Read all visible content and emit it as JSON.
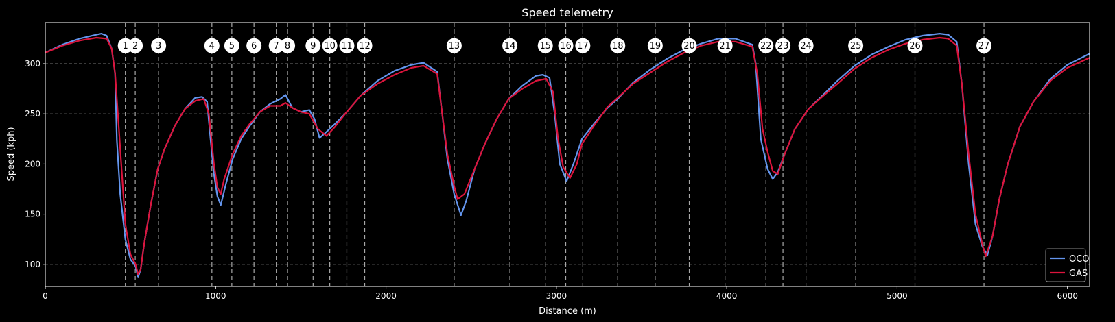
{
  "chart_data": {
    "type": "line",
    "title": "Speed telemetry",
    "xlabel": "Distance (m)",
    "ylabel": "Speed (kph)",
    "xlim": [
      0,
      6130
    ],
    "ylim": [
      78,
      341
    ],
    "xticks": [
      0,
      1000,
      2000,
      3000,
      4000,
      5000,
      6000
    ],
    "yticks": [
      100,
      150,
      200,
      250,
      300
    ],
    "grid": "horizontal dashed",
    "legend_position": "bottom-right",
    "series": [
      {
        "name": "OCO",
        "color": "#6495ED",
        "points": [
          [
            0,
            311
          ],
          [
            100,
            319
          ],
          [
            200,
            325
          ],
          [
            300,
            329
          ],
          [
            330,
            330
          ],
          [
            360,
            328
          ],
          [
            390,
            315
          ],
          [
            410,
            290
          ],
          [
            420,
            224
          ],
          [
            440,
            170
          ],
          [
            470,
            125
          ],
          [
            500,
            105
          ],
          [
            530,
            98
          ],
          [
            545,
            87
          ],
          [
            560,
            95
          ],
          [
            580,
            120
          ],
          [
            620,
            160
          ],
          [
            660,
            195
          ],
          [
            700,
            215
          ],
          [
            760,
            238
          ],
          [
            820,
            255
          ],
          [
            880,
            266
          ],
          [
            920,
            267
          ],
          [
            950,
            262
          ],
          [
            970,
            225
          ],
          [
            990,
            190
          ],
          [
            1010,
            168
          ],
          [
            1030,
            159
          ],
          [
            1060,
            180
          ],
          [
            1100,
            205
          ],
          [
            1150,
            225
          ],
          [
            1200,
            238
          ],
          [
            1260,
            252
          ],
          [
            1320,
            260
          ],
          [
            1380,
            265
          ],
          [
            1410,
            269
          ],
          [
            1450,
            256
          ],
          [
            1500,
            252
          ],
          [
            1550,
            254
          ],
          [
            1580,
            245
          ],
          [
            1610,
            226
          ],
          [
            1650,
            232
          ],
          [
            1700,
            240
          ],
          [
            1760,
            250
          ],
          [
            1850,
            268
          ],
          [
            1950,
            283
          ],
          [
            2050,
            293
          ],
          [
            2150,
            299
          ],
          [
            2220,
            301
          ],
          [
            2300,
            292
          ],
          [
            2330,
            250
          ],
          [
            2360,
            205
          ],
          [
            2400,
            170
          ],
          [
            2440,
            149
          ],
          [
            2470,
            163
          ],
          [
            2520,
            195
          ],
          [
            2580,
            220
          ],
          [
            2650,
            245
          ],
          [
            2720,
            265
          ],
          [
            2800,
            278
          ],
          [
            2880,
            288
          ],
          [
            2920,
            289
          ],
          [
            2960,
            286
          ],
          [
            2990,
            250
          ],
          [
            3020,
            200
          ],
          [
            3060,
            183
          ],
          [
            3100,
            200
          ],
          [
            3150,
            225
          ],
          [
            3220,
            240
          ],
          [
            3300,
            256
          ],
          [
            3360,
            265
          ],
          [
            3450,
            281
          ],
          [
            3550,
            294
          ],
          [
            3650,
            305
          ],
          [
            3750,
            314
          ],
          [
            3850,
            320
          ],
          [
            3950,
            325
          ],
          [
            4050,
            325
          ],
          [
            4150,
            319
          ],
          [
            4170,
            300
          ],
          [
            4200,
            225
          ],
          [
            4240,
            195
          ],
          [
            4270,
            185
          ],
          [
            4300,
            192
          ],
          [
            4340,
            210
          ],
          [
            4400,
            235
          ],
          [
            4480,
            255
          ],
          [
            4560,
            268
          ],
          [
            4650,
            283
          ],
          [
            4750,
            298
          ],
          [
            4850,
            309
          ],
          [
            4950,
            317
          ],
          [
            5050,
            324
          ],
          [
            5150,
            328
          ],
          [
            5250,
            330
          ],
          [
            5300,
            329
          ],
          [
            5350,
            322
          ],
          [
            5380,
            280
          ],
          [
            5420,
            200
          ],
          [
            5460,
            140
          ],
          [
            5500,
            118
          ],
          [
            5530,
            109
          ],
          [
            5560,
            128
          ],
          [
            5600,
            165
          ],
          [
            5650,
            200
          ],
          [
            5720,
            237
          ],
          [
            5800,
            262
          ],
          [
            5900,
            285
          ],
          [
            6000,
            299
          ],
          [
            6130,
            310
          ]
        ]
      },
      {
        "name": "GAS",
        "color": "#DC143C",
        "points": [
          [
            0,
            311
          ],
          [
            100,
            318
          ],
          [
            200,
            323
          ],
          [
            300,
            326
          ],
          [
            360,
            325
          ],
          [
            390,
            315
          ],
          [
            410,
            290
          ],
          [
            430,
            240
          ],
          [
            450,
            190
          ],
          [
            470,
            140
          ],
          [
            500,
            110
          ],
          [
            530,
            100
          ],
          [
            545,
            90
          ],
          [
            560,
            95
          ],
          [
            580,
            120
          ],
          [
            620,
            160
          ],
          [
            660,
            195
          ],
          [
            700,
            215
          ],
          [
            760,
            238
          ],
          [
            820,
            255
          ],
          [
            880,
            263
          ],
          [
            930,
            265
          ],
          [
            960,
            250
          ],
          [
            990,
            200
          ],
          [
            1010,
            177
          ],
          [
            1030,
            170
          ],
          [
            1050,
            185
          ],
          [
            1100,
            210
          ],
          [
            1150,
            228
          ],
          [
            1200,
            240
          ],
          [
            1260,
            252
          ],
          [
            1320,
            258
          ],
          [
            1380,
            258
          ],
          [
            1410,
            261
          ],
          [
            1450,
            256
          ],
          [
            1500,
            252
          ],
          [
            1550,
            250
          ],
          [
            1600,
            235
          ],
          [
            1650,
            228
          ],
          [
            1700,
            237
          ],
          [
            1760,
            250
          ],
          [
            1850,
            268
          ],
          [
            1950,
            280
          ],
          [
            2050,
            289
          ],
          [
            2150,
            296
          ],
          [
            2220,
            298
          ],
          [
            2300,
            290
          ],
          [
            2330,
            250
          ],
          [
            2360,
            210
          ],
          [
            2400,
            178
          ],
          [
            2420,
            165
          ],
          [
            2460,
            170
          ],
          [
            2520,
            195
          ],
          [
            2580,
            220
          ],
          [
            2650,
            245
          ],
          [
            2720,
            265
          ],
          [
            2800,
            275
          ],
          [
            2880,
            283
          ],
          [
            2940,
            285
          ],
          [
            2980,
            272
          ],
          [
            3010,
            225
          ],
          [
            3040,
            197
          ],
          [
            3080,
            186
          ],
          [
            3120,
            200
          ],
          [
            3150,
            220
          ],
          [
            3220,
            238
          ],
          [
            3300,
            257
          ],
          [
            3360,
            266
          ],
          [
            3450,
            280
          ],
          [
            3550,
            291
          ],
          [
            3650,
            302
          ],
          [
            3750,
            311
          ],
          [
            3850,
            318
          ],
          [
            3950,
            322
          ],
          [
            4050,
            322
          ],
          [
            4150,
            317
          ],
          [
            4180,
            290
          ],
          [
            4210,
            235
          ],
          [
            4240,
            212
          ],
          [
            4270,
            193
          ],
          [
            4300,
            190
          ],
          [
            4340,
            210
          ],
          [
            4400,
            235
          ],
          [
            4480,
            255
          ],
          [
            4560,
            267
          ],
          [
            4650,
            280
          ],
          [
            4750,
            295
          ],
          [
            4850,
            306
          ],
          [
            4950,
            314
          ],
          [
            5050,
            320
          ],
          [
            5150,
            324
          ],
          [
            5250,
            326
          ],
          [
            5300,
            325
          ],
          [
            5350,
            318
          ],
          [
            5380,
            280
          ],
          [
            5420,
            210
          ],
          [
            5460,
            150
          ],
          [
            5500,
            120
          ],
          [
            5520,
            108
          ],
          [
            5560,
            128
          ],
          [
            5600,
            165
          ],
          [
            5650,
            200
          ],
          [
            5720,
            237
          ],
          [
            5800,
            262
          ],
          [
            5900,
            283
          ],
          [
            6000,
            296
          ],
          [
            6130,
            306
          ]
        ]
      }
    ],
    "corners": [
      {
        "label": "1",
        "x": 470
      },
      {
        "label": "2",
        "x": 528
      },
      {
        "label": "3",
        "x": 665
      },
      {
        "label": "4",
        "x": 978
      },
      {
        "label": "5",
        "x": 1095
      },
      {
        "label": "6",
        "x": 1225
      },
      {
        "label": "7",
        "x": 1356
      },
      {
        "label": "8",
        "x": 1422
      },
      {
        "label": "9",
        "x": 1572
      },
      {
        "label": "10",
        "x": 1670
      },
      {
        "label": "11",
        "x": 1770
      },
      {
        "label": "12",
        "x": 1875
      },
      {
        "label": "13",
        "x": 2400
      },
      {
        "label": "14",
        "x": 2727
      },
      {
        "label": "15",
        "x": 2935
      },
      {
        "label": "16",
        "x": 3055
      },
      {
        "label": "17",
        "x": 3155
      },
      {
        "label": "18",
        "x": 3360
      },
      {
        "label": "19",
        "x": 3580
      },
      {
        "label": "20",
        "x": 3780
      },
      {
        "label": "21",
        "x": 3990
      },
      {
        "label": "22",
        "x": 4230
      },
      {
        "label": "23",
        "x": 4330
      },
      {
        "label": "24",
        "x": 4465
      },
      {
        "label": "25",
        "x": 4757
      },
      {
        "label": "26",
        "x": 5105
      },
      {
        "label": "27",
        "x": 5510
      }
    ]
  }
}
